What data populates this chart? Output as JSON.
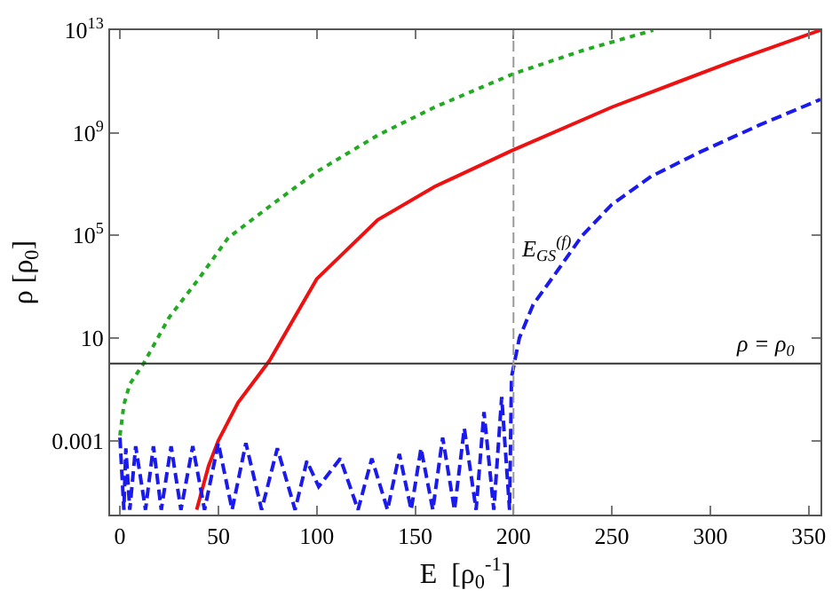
{
  "chart_data": {
    "type": "line",
    "xlabel": "E  [ρ$_{0}$$^{-1}$]",
    "ylabel": "ρ [ρ$_{0}$]",
    "log": "y",
    "grid": false,
    "marker": "none",
    "xlim": [
      -5,
      356
    ],
    "xticks": [
      0,
      50,
      100,
      150,
      200,
      250,
      300,
      350
    ],
    "ylim": [
      1.3e-06,
      10000000000000.0
    ],
    "yticks": [
      {
        "value": 0.001,
        "label": "0.001"
      },
      {
        "value": 10,
        "label": "10"
      },
      {
        "value": 100000.0,
        "label": "10$^{5}$"
      },
      {
        "value": 1000000000.0,
        "label": "10$^{9}$"
      },
      {
        "value": 10000000000000.0,
        "label": "10$^{13}$"
      }
    ],
    "ref_lines": [
      {
        "axis": "y",
        "value": 1,
        "label": "ρ = ρ$_{0}$",
        "color": "#333333",
        "line_style": "solid"
      },
      {
        "axis": "x",
        "value": 200,
        "label": "E$_{GS}$$^{(f)}$",
        "color": "#999999",
        "line_style": "dashed"
      }
    ],
    "series": [
      {
        "color": "#22aa22",
        "line_style": "dotted",
        "x": [
          0,
          2,
          5,
          12,
          25,
          40,
          55,
          79,
          100,
          131,
          160,
          200,
          235,
          271
        ],
        "values": [
          0.0016,
          0.025,
          0.16,
          1,
          63,
          2000,
          80000.0,
          2000000.0,
          30000000.0,
          800000000.0,
          10000000000.0,
          200000000000.0,
          1600000000000.0,
          10000000000000.0
        ]
      },
      {
        "color": "#ee1111",
        "line_style": "solid",
        "x": [
          39,
          45,
          50,
          60,
          76,
          100,
          131,
          160,
          199,
          250,
          311,
          356
        ],
        "values": [
          2e-06,
          0.0001,
          0.001,
          0.03,
          1.3,
          2000.0,
          400000.0,
          8000000.0,
          200000000.0,
          10000000000.0,
          600000000000.0,
          10000000000000.0
        ]
      },
      {
        "color": "#1a1aee",
        "line_style": "dashed",
        "x": [
          0,
          2,
          3,
          5,
          8,
          13,
          17,
          21,
          26,
          31,
          37,
          43,
          50,
          57,
          64,
          72,
          80,
          89,
          95,
          101,
          112,
          121,
          128,
          136,
          142,
          148,
          153,
          159,
          164,
          170,
          175,
          181,
          185,
          190,
          194,
          198,
          199,
          203,
          210,
          221,
          235,
          250,
          270,
          295,
          325,
          356
        ],
        "values": [
          0.0013,
          2e-06,
          0.0005,
          2e-06,
          0.0006,
          2e-06,
          0.0006,
          2e-06,
          0.0006,
          2e-06,
          0.0006,
          2e-06,
          0.0008,
          2e-06,
          0.0008,
          2e-06,
          0.0005,
          2e-06,
          0.00016,
          1.6e-05,
          0.0002,
          2e-06,
          0.0002,
          2e-06,
          0.0003,
          2e-06,
          0.0005,
          2e-06,
          0.0013,
          2e-06,
          0.003,
          2e-06,
          0.013,
          2e-06,
          0.05,
          2e-06,
          0.3,
          10,
          200,
          3000.0,
          100000.0,
          1600000.0,
          20000000.0,
          180000000.0,
          2000000000.0,
          20000000000.0
        ]
      }
    ]
  }
}
